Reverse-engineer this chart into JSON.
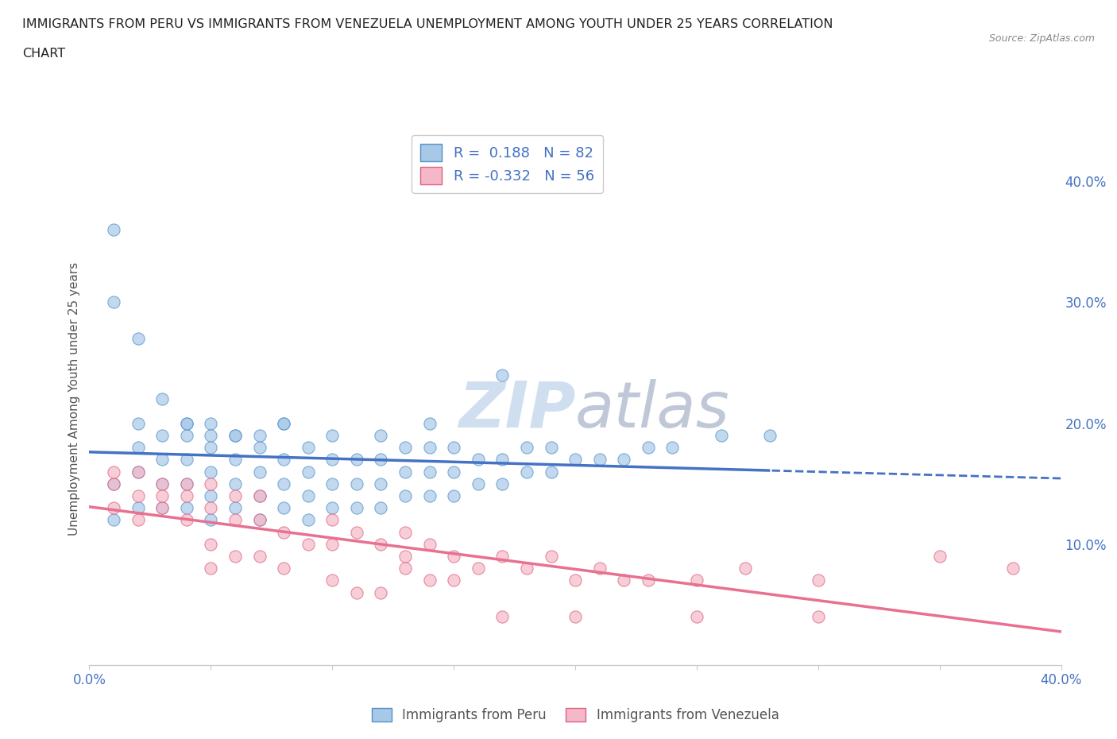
{
  "title_line1": "IMMIGRANTS FROM PERU VS IMMIGRANTS FROM VENEZUELA UNEMPLOYMENT AMONG YOUTH UNDER 25 YEARS CORRELATION",
  "title_line2": "CHART",
  "source_text": "Source: ZipAtlas.com",
  "ylabel": "Unemployment Among Youth under 25 years",
  "xlim": [
    0.0,
    0.4
  ],
  "ylim": [
    0.0,
    0.44
  ],
  "xticks": [
    0.0,
    0.05,
    0.1,
    0.15,
    0.2,
    0.25,
    0.3,
    0.35,
    0.4
  ],
  "xticklabels": [
    "0.0%",
    "",
    "",
    "",
    "",
    "",
    "",
    "",
    "40.0%"
  ],
  "ytick_right_labels": [
    "10.0%",
    "20.0%",
    "30.0%",
    "40.0%"
  ],
  "ytick_right_values": [
    0.1,
    0.2,
    0.3,
    0.4
  ],
  "peru_color": "#A8C8E8",
  "peru_edge_color": "#5090C8",
  "venezuela_color": "#F4B8C8",
  "venezuela_edge_color": "#E06080",
  "peru_trend_color": "#4472C4",
  "venezuela_trend_color": "#E87090",
  "peru_R": 0.188,
  "peru_N": 82,
  "venezuela_R": -0.332,
  "venezuela_N": 56,
  "legend_R_color": "#4472C4",
  "watermark_color": "#D0DFF0",
  "grid_color": "#E0E0E0",
  "background_color": "#FFFFFF",
  "peru_scatter_x": [
    0.01,
    0.01,
    0.02,
    0.02,
    0.02,
    0.02,
    0.03,
    0.03,
    0.03,
    0.03,
    0.04,
    0.04,
    0.04,
    0.04,
    0.04,
    0.05,
    0.05,
    0.05,
    0.05,
    0.05,
    0.06,
    0.06,
    0.06,
    0.06,
    0.07,
    0.07,
    0.07,
    0.07,
    0.08,
    0.08,
    0.08,
    0.08,
    0.09,
    0.09,
    0.09,
    0.09,
    0.1,
    0.1,
    0.1,
    0.1,
    0.11,
    0.11,
    0.11,
    0.12,
    0.12,
    0.12,
    0.12,
    0.13,
    0.13,
    0.13,
    0.14,
    0.14,
    0.14,
    0.15,
    0.15,
    0.15,
    0.16,
    0.16,
    0.17,
    0.17,
    0.18,
    0.18,
    0.19,
    0.19,
    0.2,
    0.21,
    0.22,
    0.23,
    0.24,
    0.26,
    0.28,
    0.01,
    0.01,
    0.02,
    0.03,
    0.04,
    0.05,
    0.06,
    0.07,
    0.08,
    0.14,
    0.17
  ],
  "peru_scatter_y": [
    0.12,
    0.15,
    0.13,
    0.16,
    0.18,
    0.2,
    0.13,
    0.15,
    0.17,
    0.19,
    0.13,
    0.15,
    0.17,
    0.19,
    0.2,
    0.12,
    0.14,
    0.16,
    0.18,
    0.2,
    0.13,
    0.15,
    0.17,
    0.19,
    0.12,
    0.14,
    0.16,
    0.18,
    0.13,
    0.15,
    0.17,
    0.2,
    0.12,
    0.14,
    0.16,
    0.18,
    0.13,
    0.15,
    0.17,
    0.19,
    0.13,
    0.15,
    0.17,
    0.13,
    0.15,
    0.17,
    0.19,
    0.14,
    0.16,
    0.18,
    0.14,
    0.16,
    0.18,
    0.14,
    0.16,
    0.18,
    0.15,
    0.17,
    0.15,
    0.17,
    0.16,
    0.18,
    0.16,
    0.18,
    0.17,
    0.17,
    0.17,
    0.18,
    0.18,
    0.19,
    0.19,
    0.36,
    0.3,
    0.27,
    0.22,
    0.2,
    0.19,
    0.19,
    0.19,
    0.2,
    0.2,
    0.24
  ],
  "venezuela_scatter_x": [
    0.01,
    0.01,
    0.02,
    0.02,
    0.03,
    0.03,
    0.04,
    0.04,
    0.05,
    0.05,
    0.05,
    0.06,
    0.06,
    0.07,
    0.07,
    0.08,
    0.09,
    0.1,
    0.1,
    0.11,
    0.12,
    0.13,
    0.13,
    0.14,
    0.15,
    0.16,
    0.17,
    0.18,
    0.19,
    0.2,
    0.21,
    0.22,
    0.23,
    0.25,
    0.27,
    0.3,
    0.35,
    0.38,
    0.01,
    0.02,
    0.03,
    0.04,
    0.05,
    0.06,
    0.07,
    0.08,
    0.1,
    0.11,
    0.12,
    0.13,
    0.14,
    0.15,
    0.17,
    0.2,
    0.25,
    0.3
  ],
  "venezuela_scatter_y": [
    0.13,
    0.15,
    0.12,
    0.14,
    0.13,
    0.15,
    0.12,
    0.14,
    0.1,
    0.13,
    0.15,
    0.12,
    0.14,
    0.12,
    0.14,
    0.11,
    0.1,
    0.1,
    0.12,
    0.11,
    0.1,
    0.09,
    0.11,
    0.1,
    0.09,
    0.08,
    0.09,
    0.08,
    0.09,
    0.07,
    0.08,
    0.07,
    0.07,
    0.07,
    0.08,
    0.07,
    0.09,
    0.08,
    0.16,
    0.16,
    0.14,
    0.15,
    0.08,
    0.09,
    0.09,
    0.08,
    0.07,
    0.06,
    0.06,
    0.08,
    0.07,
    0.07,
    0.04,
    0.04,
    0.04,
    0.04
  ]
}
